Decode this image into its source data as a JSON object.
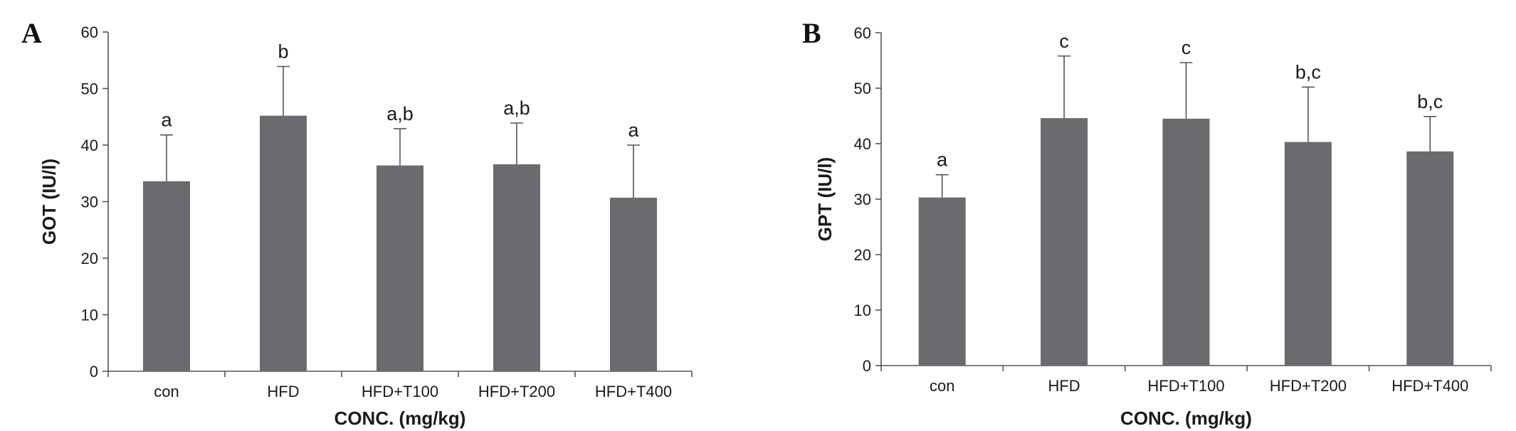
{
  "chart_data": [
    {
      "panel": "A",
      "type": "bar",
      "categories": [
        "con",
        "HFD",
        "HFD+T100",
        "HFD+T200",
        "HFD+T400"
      ],
      "values": [
        33.6,
        45.2,
        36.4,
        36.6,
        30.7
      ],
      "errors": [
        8.2,
        8.7,
        6.5,
        7.3,
        9.3
      ],
      "significance": [
        "a",
        "b",
        "a,b",
        "a,b",
        "a"
      ],
      "xlabel": "CONC. (mg/kg)",
      "ylabel": "GOT (IU/l)",
      "ylim": [
        0,
        60
      ],
      "yticks": [
        0,
        10,
        20,
        30,
        40,
        50,
        60
      ],
      "bar_color": "#6b6a6e",
      "grid": false
    },
    {
      "panel": "B",
      "type": "bar",
      "categories": [
        "con",
        "HFD",
        "HFD+T100",
        "HFD+T200",
        "HFD+T400"
      ],
      "values": [
        30.3,
        44.6,
        44.5,
        40.3,
        38.6
      ],
      "errors": [
        4.1,
        11.2,
        10.1,
        9.9,
        6.3
      ],
      "significance": [
        "a",
        "c",
        "c",
        "b,c",
        "b,c"
      ],
      "xlabel": "CONC. (mg/kg)",
      "ylabel": "GPT (IU/l)",
      "ylim": [
        0,
        60
      ],
      "yticks": [
        0,
        10,
        20,
        30,
        40,
        50,
        60
      ],
      "bar_color": "#6b6a6e",
      "grid": false
    }
  ]
}
